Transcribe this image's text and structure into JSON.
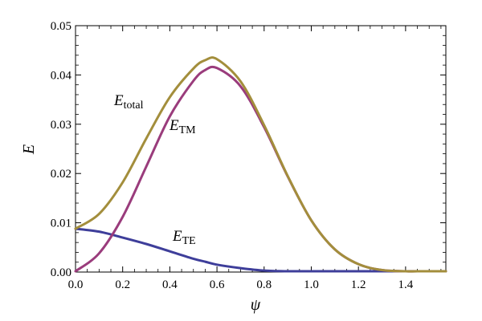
{
  "chart_data": {
    "type": "line",
    "xlabel": "ψ",
    "ylabel": "E",
    "xlim": [
      0,
      1.5708
    ],
    "ylim": [
      0,
      0.05
    ],
    "x_ticks": [
      "0.0",
      "0.2",
      "0.4",
      "0.6",
      "0.8",
      "1.0",
      "1.2",
      "1.4"
    ],
    "y_ticks": [
      "0.00",
      "0.01",
      "0.02",
      "0.03",
      "0.04",
      "0.05"
    ],
    "grid": false,
    "frame": "box",
    "x": [
      0,
      0.1,
      0.2,
      0.3,
      0.4,
      0.5,
      0.55,
      0.6,
      0.7,
      0.8,
      0.9,
      1.0,
      1.1,
      1.2,
      1.3,
      1.4,
      1.45,
      1.5708
    ],
    "series": [
      {
        "name_main": "E",
        "name_sub": "total",
        "color": "#A38E3C",
        "values": [
          0.0088,
          0.0118,
          0.0182,
          0.0271,
          0.0355,
          0.0413,
          0.043,
          0.0432,
          0.0387,
          0.0298,
          0.0195,
          0.0105,
          0.0046,
          0.0016,
          0.0004,
          0.0001,
          0.0,
          0.0
        ]
      },
      {
        "name_main": "E",
        "name_sub": "TM",
        "color": "#9A3C7C",
        "values": [
          0.0,
          0.0038,
          0.0112,
          0.0214,
          0.0316,
          0.0388,
          0.041,
          0.0414,
          0.0377,
          0.0294,
          0.0194,
          0.0105,
          0.0046,
          0.0016,
          0.0004,
          0.0001,
          0.0,
          0.0
        ]
      },
      {
        "name_main": "E",
        "name_sub": "TE",
        "color": "#3E3E9A",
        "values": [
          0.0088,
          0.0082,
          0.007,
          0.0057,
          0.0042,
          0.0027,
          0.0021,
          0.0015,
          0.0008,
          0.0003,
          0.0001,
          0.0,
          0.0,
          0.0,
          0.0,
          0.0,
          0.0,
          0.0
        ]
      }
    ]
  }
}
